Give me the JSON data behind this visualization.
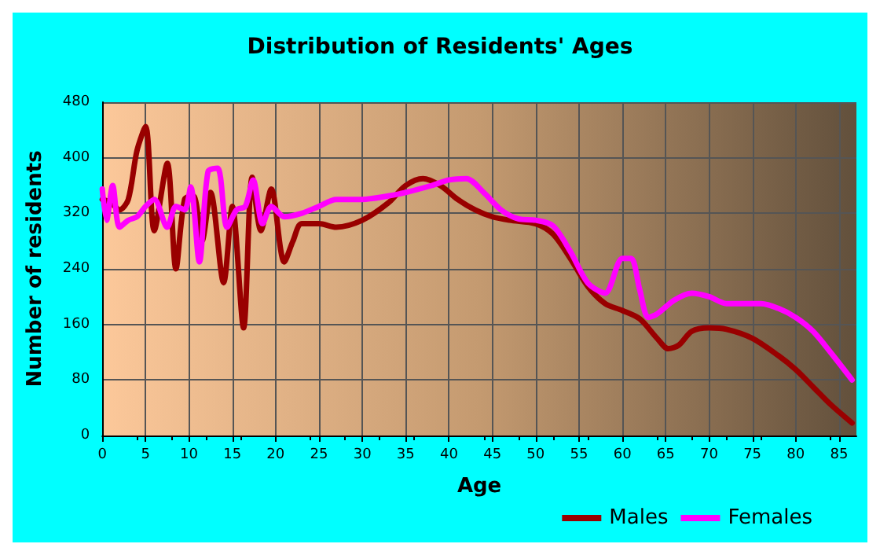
{
  "chart_data": {
    "type": "line",
    "title": "Distribution of Residents' Ages",
    "xlabel": "Age",
    "ylabel": "Number of residents",
    "xlim": [
      0,
      87
    ],
    "xticks": [
      0,
      5,
      10,
      15,
      20,
      25,
      30,
      35,
      40,
      45,
      50,
      55,
      60,
      65,
      70,
      75,
      80,
      85
    ],
    "ylim": [
      0,
      480
    ],
    "yticks": [
      0,
      80,
      160,
      240,
      320,
      400,
      480
    ],
    "grid": true,
    "legend": "bottom right",
    "marker": "none",
    "line_style": "solid",
    "series": [
      {
        "name": "Males",
        "color": "#990000",
        "x": [
          0,
          1,
          2,
          3,
          4,
          5,
          6,
          7.5,
          8.5,
          9.5,
          10.5,
          11.5,
          12.5,
          14,
          15,
          16.3,
          17.3,
          18.3,
          19.5,
          21,
          22,
          23,
          25,
          27,
          30,
          33,
          35,
          37,
          39,
          41,
          43,
          45,
          47,
          50,
          52,
          54,
          56,
          58,
          60,
          62,
          64,
          65.3,
          66.5,
          68,
          70,
          72,
          75,
          78,
          80,
          82,
          84,
          86.5
        ],
        "values": [
          340,
          335,
          325,
          340,
          410,
          445,
          295,
          392,
          240,
          340,
          345,
          280,
          350,
          220,
          330,
          155,
          372,
          295,
          355,
          250,
          280,
          305,
          305,
          300,
          310,
          335,
          360,
          370,
          360,
          340,
          325,
          315,
          310,
          305,
          290,
          255,
          215,
          190,
          180,
          168,
          140,
          125,
          130,
          150,
          155,
          153,
          140,
          115,
          95,
          70,
          45,
          18
        ]
      },
      {
        "name": "Females",
        "color": "#ff00ff",
        "x": [
          0,
          0.5,
          1.2,
          2,
          3,
          4,
          5,
          6,
          7.5,
          8.5,
          9.5,
          10.2,
          11.2,
          12.2,
          13.3,
          14.4,
          15.5,
          16.5,
          17.4,
          18.5,
          19.5,
          21,
          23,
          25,
          27,
          30,
          33,
          35,
          38,
          40,
          42,
          44,
          46,
          48,
          50,
          52,
          54,
          56,
          58,
          60,
          61,
          62,
          63,
          64,
          66,
          68,
          70,
          72,
          74,
          76,
          78,
          80,
          82,
          84,
          86.5
        ],
        "values": [
          355,
          310,
          360,
          300,
          310,
          315,
          330,
          340,
          300,
          330,
          325,
          358,
          250,
          380,
          385,
          300,
          325,
          330,
          368,
          305,
          330,
          315,
          320,
          330,
          340,
          340,
          345,
          350,
          360,
          368,
          370,
          350,
          325,
          312,
          310,
          302,
          265,
          220,
          205,
          255,
          255,
          210,
          170,
          175,
          195,
          205,
          200,
          190,
          190,
          190,
          183,
          170,
          150,
          120,
          80
        ]
      }
    ]
  }
}
